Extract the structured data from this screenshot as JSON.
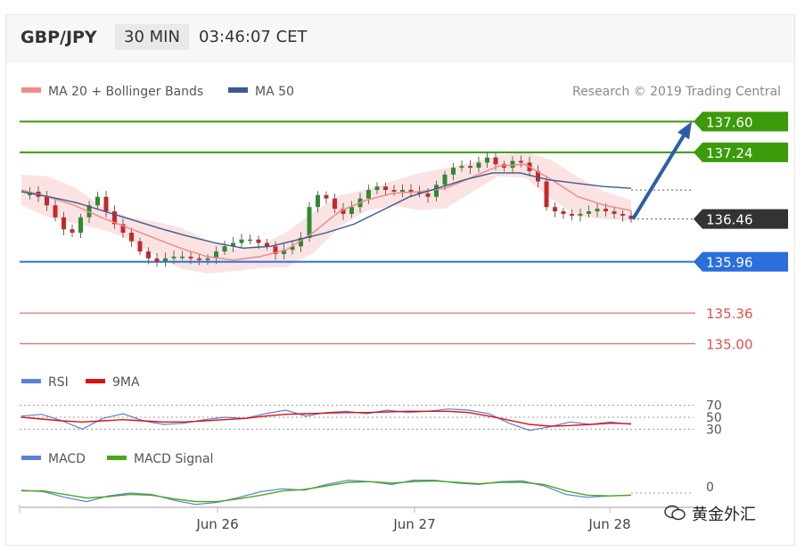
{
  "header": {
    "symbol": "GBP/JPY",
    "timeframe": "30 MIN",
    "time": "03:46:07 CET"
  },
  "legend": {
    "ma20": {
      "label": "MA 20 + Bollinger Bands",
      "color": "#f08a8a"
    },
    "ma50": {
      "label": "MA 50",
      "color": "#3b5b8c"
    }
  },
  "credit": "Research © 2019 Trading Central",
  "chart_data": {
    "type": "candlestick",
    "y_range": [
      134.85,
      137.75
    ],
    "levels": [
      {
        "value": 137.6,
        "label": "137.60",
        "kind": "resistance",
        "color": "#3c9b0a"
      },
      {
        "value": 137.24,
        "label": "137.24",
        "kind": "resistance",
        "color": "#3c9b0a"
      },
      {
        "value": 136.46,
        "label": "136.46",
        "kind": "last",
        "color": "#333333"
      },
      {
        "value": 135.96,
        "label": "135.96",
        "kind": "pivot",
        "color": "#2a6fdb"
      },
      {
        "value": 135.36,
        "label": "135.36",
        "kind": "support",
        "color": "#e05050"
      },
      {
        "value": 135.0,
        "label": "135.00",
        "kind": "support",
        "color": "#e05050"
      }
    ],
    "close_path": [
      136.74,
      136.78,
      136.72,
      136.62,
      136.48,
      136.34,
      136.3,
      136.48,
      136.62,
      136.72,
      136.55,
      136.4,
      136.3,
      136.2,
      136.08,
      136.0,
      135.96,
      136.0,
      136.02,
      136.02,
      136.0,
      135.98,
      136.0,
      136.08,
      136.14,
      136.18,
      136.22,
      136.22,
      136.18,
      136.14,
      136.05,
      136.1,
      136.14,
      136.24,
      136.6,
      136.74,
      136.7,
      136.58,
      136.52,
      136.6,
      136.7,
      136.8,
      136.84,
      136.8,
      136.78,
      136.8,
      136.78,
      136.76,
      136.72,
      136.86,
      136.98,
      137.06,
      137.08,
      137.06,
      137.12,
      137.18,
      137.1,
      137.06,
      137.14,
      137.12,
      137.02,
      136.9,
      136.6,
      136.55,
      136.52,
      136.5,
      136.52,
      136.55,
      136.58,
      136.55,
      136.52,
      136.5,
      136.46
    ],
    "ma50_path": [
      136.78,
      136.72,
      136.65,
      136.55,
      136.45,
      136.35,
      136.26,
      136.18,
      136.12,
      136.14,
      136.22,
      136.3,
      136.4,
      136.56,
      136.72,
      136.82,
      136.92,
      137.0,
      137.0,
      136.92,
      136.88,
      136.84,
      136.82
    ],
    "ma50_end": 136.8,
    "ma20_path": [
      136.8,
      136.72,
      136.62,
      136.48,
      136.36,
      136.24,
      136.12,
      136.02,
      135.98,
      136.02,
      136.1,
      136.3,
      136.55,
      136.68,
      136.76,
      136.78,
      136.82,
      136.95,
      137.08,
      137.1,
      136.92,
      136.72,
      136.62,
      136.56
    ],
    "forecast_target": 137.6,
    "x_labels": [
      "Jun 26",
      "Jun 27",
      "Jun 28"
    ],
    "rsi": {
      "label": "RSI",
      "ma_label": "9MA",
      "rsi_color": "#5b7fd6",
      "ma_color": "#e01010",
      "levels": [
        70,
        50,
        30
      ],
      "level_labels": [
        "70",
        "50",
        "30"
      ],
      "rsi_path": [
        52,
        55,
        44,
        30,
        48,
        56,
        44,
        38,
        40,
        46,
        50,
        48,
        56,
        62,
        52,
        58,
        60,
        56,
        62,
        58,
        60,
        64,
        62,
        56,
        40,
        28,
        34,
        42,
        38,
        42,
        38
      ],
      "ma_path": [
        50,
        47,
        44,
        42,
        44,
        46,
        44,
        42,
        42,
        44,
        46,
        48,
        52,
        55,
        56,
        57,
        58,
        58,
        59,
        60,
        60,
        60,
        58,
        52,
        45,
        38,
        35,
        36,
        38,
        40,
        39
      ]
    },
    "macd": {
      "label": "MACD",
      "signal_label": "MACD Signal",
      "macd_color": "#5b7fd6",
      "signal_color": "#4aa818",
      "zero_label": "0",
      "macd_path": [
        0.04,
        0.02,
        -0.06,
        -0.12,
        -0.04,
        0.0,
        -0.02,
        -0.1,
        -0.16,
        -0.13,
        -0.06,
        0.02,
        0.06,
        0.04,
        0.12,
        0.18,
        0.16,
        0.12,
        0.18,
        0.18,
        0.14,
        0.12,
        0.16,
        0.17,
        0.1,
        -0.02,
        -0.06,
        -0.04,
        -0.03
      ],
      "signal_path": [
        0.03,
        0.03,
        -0.02,
        -0.07,
        -0.05,
        -0.02,
        -0.03,
        -0.08,
        -0.12,
        -0.12,
        -0.08,
        -0.03,
        0.03,
        0.05,
        0.1,
        0.15,
        0.16,
        0.14,
        0.16,
        0.17,
        0.15,
        0.13,
        0.15,
        0.15,
        0.12,
        0.03,
        -0.03,
        -0.04,
        -0.03
      ]
    }
  },
  "watermark": "黄金外汇"
}
